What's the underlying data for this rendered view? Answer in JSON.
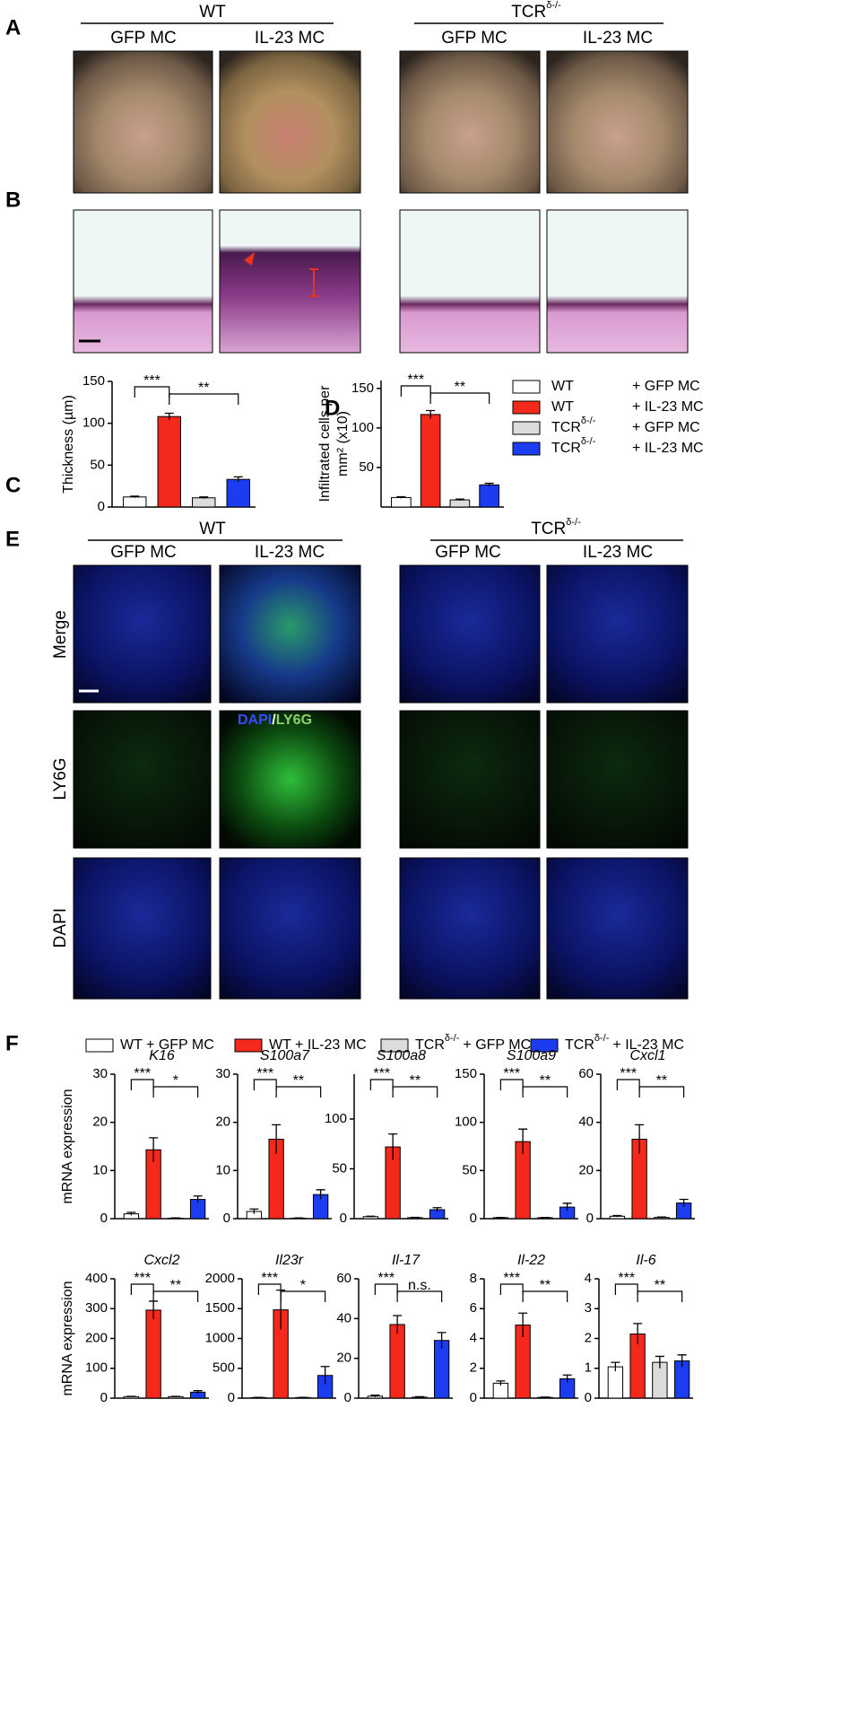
{
  "panel_labels": {
    "a": "A",
    "b": "B",
    "c": "C",
    "d": "D",
    "e": "E",
    "f": "F"
  },
  "panel_a": {
    "groups": [
      {
        "name": "WT",
        "conditions": [
          "GFP MC",
          "IL-23 MC"
        ]
      },
      {
        "name": "TCR",
        "sup": "δ-/-",
        "conditions": [
          "GFP MC",
          "IL-23 MC"
        ]
      }
    ]
  },
  "panel_e": {
    "groups": [
      {
        "name": "WT",
        "conditions": [
          "GFP MC",
          "IL-23 MC"
        ]
      },
      {
        "name": "TCR",
        "sup": "δ-/-",
        "conditions": [
          "GFP MC",
          "IL-23 MC"
        ]
      }
    ],
    "rows": [
      "Merge",
      "LY6G",
      "DAPI"
    ],
    "stain": [
      "DAPI",
      "/",
      "LY6G"
    ]
  },
  "group_colors": [
    "#ffffff",
    "#f5281c",
    "#dcdcdc",
    "#1c3cf2"
  ],
  "legend_cd": [
    {
      "strain": "WT",
      "treatment": "+ GFP  MC"
    },
    {
      "strain": "WT",
      "treatment": "+ IL-23 MC"
    },
    {
      "strain": "TCR",
      "sup": "δ-/-",
      "treatment": "+ GFP  MC"
    },
    {
      "strain": "TCR",
      "sup": "δ-/-",
      "treatment": "+ IL-23 MC"
    }
  ],
  "legend_f": [
    {
      "text": "WT + GFP MC"
    },
    {
      "text": "WT + IL-23 MC"
    },
    {
      "text": "TCR",
      "sup": "δ-/-",
      "suffix": "+ GFP MC"
    },
    {
      "text": "TCR",
      "sup": "δ-/-",
      "suffix": "+ IL-23 MC"
    }
  ],
  "chart_data": [
    {
      "type": "bar",
      "ylabel": "Thickness (µm)",
      "values": [
        12,
        108,
        11,
        33
      ],
      "errors": [
        1,
        4,
        1,
        3
      ],
      "ylim": [
        0,
        150
      ],
      "yticks": [
        0,
        50,
        100,
        150
      ],
      "annotations": [
        "***",
        "**"
      ]
    },
    {
      "type": "bar",
      "ylabel": [
        "Infiltrated cells per",
        "mm² (x10)"
      ],
      "values": [
        12,
        117,
        9,
        28
      ],
      "errors": [
        1,
        5,
        1,
        2
      ],
      "ylim": [
        0,
        160
      ],
      "yticks": [
        50,
        100,
        150
      ],
      "annotations": [
        "***",
        "**"
      ]
    },
    {
      "type": "bar",
      "title": "K16",
      "ylabel": "mRNA expression",
      "values": [
        1,
        14.3,
        0.1,
        4
      ],
      "errors": [
        0.3,
        2.5,
        0.05,
        0.7
      ],
      "ylim": [
        0,
        30
      ],
      "yticks": [
        0,
        10,
        20,
        30
      ],
      "annotations": [
        "***",
        "*"
      ]
    },
    {
      "type": "bar",
      "title": "S100a7",
      "values": [
        1.5,
        16.5,
        0.1,
        5
      ],
      "errors": [
        0.5,
        3,
        0.05,
        1
      ],
      "ylim": [
        0,
        30
      ],
      "yticks": [
        0,
        10,
        20,
        30
      ],
      "annotations": [
        "***",
        "**"
      ]
    },
    {
      "type": "bar",
      "title": "S100a8",
      "values": [
        2,
        72,
        1,
        9
      ],
      "errors": [
        0.5,
        13,
        0.3,
        2
      ],
      "ylim": [
        0,
        145
      ],
      "yticks": [
        0,
        50,
        100
      ],
      "annotations": [
        "***",
        "**"
      ]
    },
    {
      "type": "bar",
      "title": "S100a9",
      "values": [
        1,
        80,
        1,
        12
      ],
      "errors": [
        0.3,
        13,
        0.3,
        4
      ],
      "ylim": [
        0,
        150
      ],
      "yticks": [
        0,
        50,
        100,
        150
      ],
      "annotations": [
        "***",
        "**"
      ]
    },
    {
      "type": "bar",
      "title": "Cxcl1",
      "values": [
        1,
        33,
        0.5,
        6.5
      ],
      "errors": [
        0.3,
        6,
        0.2,
        1.5
      ],
      "ylim": [
        0,
        60
      ],
      "yticks": [
        0,
        20,
        40,
        60
      ],
      "annotations": [
        "***",
        "**"
      ]
    },
    {
      "type": "bar",
      "title": "Cxcl2",
      "ylabel": "mRNA expression",
      "values": [
        5,
        295,
        5,
        20
      ],
      "errors": [
        1,
        30,
        1,
        5
      ],
      "ylim": [
        0,
        400
      ],
      "yticks": [
        0,
        100,
        200,
        300,
        400
      ],
      "annotations": [
        "***",
        "**"
      ]
    },
    {
      "type": "bar",
      "title": "Il23r",
      "values": [
        10,
        1480,
        10,
        380
      ],
      "errors": [
        2,
        330,
        2,
        150
      ],
      "ylim": [
        0,
        2000
      ],
      "yticks": [
        0,
        500,
        1000,
        1500,
        2000
      ],
      "annotations": [
        "***",
        "*"
      ]
    },
    {
      "type": "bar",
      "title": "Il-17",
      "values": [
        1,
        37,
        0.5,
        29
      ],
      "errors": [
        0.5,
        4.5,
        0.2,
        4
      ],
      "ylim": [
        0,
        60
      ],
      "yticks": [
        0,
        20,
        40,
        60
      ],
      "annotations": [
        "***",
        "n.s."
      ]
    },
    {
      "type": "bar",
      "title": "Il-22",
      "values": [
        1,
        4.9,
        0.05,
        1.3
      ],
      "errors": [
        0.15,
        0.8,
        0.02,
        0.25
      ],
      "ylim": [
        0,
        8
      ],
      "yticks": [
        0,
        2,
        4,
        6,
        8
      ],
      "annotations": [
        "***",
        "**"
      ]
    },
    {
      "type": "bar",
      "title": "Il-6",
      "values": [
        1.05,
        2.15,
        1.2,
        1.25
      ],
      "errors": [
        0.15,
        0.35,
        0.2,
        0.2
      ],
      "ylim": [
        0,
        4
      ],
      "yticks": [
        0,
        1,
        2,
        3,
        4
      ],
      "annotations": [
        "***",
        "**"
      ]
    }
  ]
}
